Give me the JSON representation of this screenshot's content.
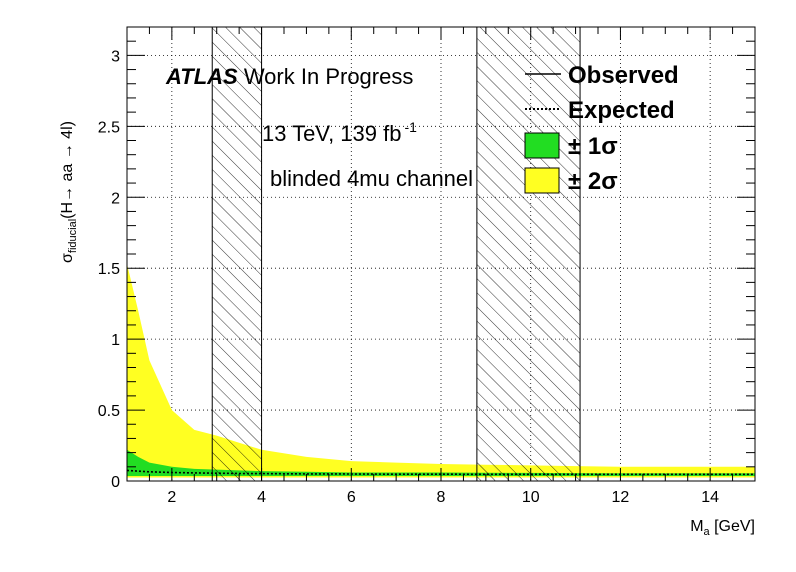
{
  "chart_data": {
    "type": "area",
    "xlabel": {
      "main": "M",
      "sub": "a",
      "unit": " [GeV]"
    },
    "ylabel": {
      "main": "σ",
      "sub": "fiducial",
      "rest": "(H→ aa → 4l)"
    },
    "xlim": [
      1,
      15
    ],
    "ylim": [
      0,
      3.2
    ],
    "xticks": [
      2,
      4,
      6,
      8,
      10,
      12,
      14
    ],
    "yticks": [
      0,
      0.5,
      1,
      1.5,
      2,
      2.5,
      3
    ],
    "ytick_labels": [
      "0",
      "0.5",
      "1",
      "1.5",
      "2",
      "2.5",
      "3"
    ],
    "grid": true,
    "annotations": {
      "atlas": "ATLAS",
      "work_in_progress": " Work In Progress",
      "energy": "13 TeV, 139 fb",
      "energy_sup": "-1",
      "channel": "blinded 4mu channel"
    },
    "legend": {
      "placement": "top-right",
      "entries": [
        {
          "label": "Observed",
          "style": "solid-line"
        },
        {
          "label": "Expected",
          "style": "dotted-line"
        },
        {
          "label": "± 1σ",
          "style": "fill",
          "color": "#22dd22"
        },
        {
          "label": "± 2σ",
          "style": "fill",
          "color": "#ffff22"
        }
      ]
    },
    "excluded_regions": [
      [
        2.9,
        4.0
      ],
      [
        8.8,
        11.1
      ]
    ],
    "x": [
      1.0,
      1.25,
      1.5,
      2.0,
      2.5,
      3.0,
      3.5,
      4.0,
      5.0,
      6.0,
      7.0,
      8.0,
      9.0,
      10.0,
      11.0,
      12.0,
      13.0,
      14.0,
      15.0
    ],
    "series": [
      {
        "name": "± 2σ",
        "color": "#ffff22",
        "lower": [
          0.025,
          0.025,
          0.025,
          0.025,
          0.025,
          0.025,
          0.025,
          0.025,
          0.025,
          0.025,
          0.025,
          0.025,
          0.025,
          0.025,
          0.025,
          0.025,
          0.025,
          0.025,
          0.025
        ],
        "upper": [
          1.53,
          1.2,
          0.85,
          0.5,
          0.36,
          0.32,
          0.27,
          0.22,
          0.17,
          0.14,
          0.13,
          0.12,
          0.115,
          0.11,
          0.105,
          0.1,
          0.1,
          0.1,
          0.1
        ]
      },
      {
        "name": "± 1σ",
        "color": "#22dd22",
        "lower": [
          0.035,
          0.035,
          0.035,
          0.035,
          0.035,
          0.035,
          0.035,
          0.035,
          0.035,
          0.035,
          0.035,
          0.035,
          0.035,
          0.035,
          0.035,
          0.035,
          0.035,
          0.035,
          0.035
        ],
        "upper": [
          0.22,
          0.17,
          0.13,
          0.1,
          0.085,
          0.08,
          0.075,
          0.07,
          0.065,
          0.06,
          0.06,
          0.06,
          0.058,
          0.057,
          0.056,
          0.055,
          0.055,
          0.055,
          0.055
        ]
      },
      {
        "name": "Expected",
        "style": "dotted",
        "values": [
          0.075,
          0.07,
          0.065,
          0.06,
          0.057,
          0.055,
          0.053,
          0.052,
          0.05,
          0.049,
          0.048,
          0.048,
          0.047,
          0.047,
          0.047,
          0.047,
          0.047,
          0.047,
          0.047
        ]
      }
    ]
  }
}
